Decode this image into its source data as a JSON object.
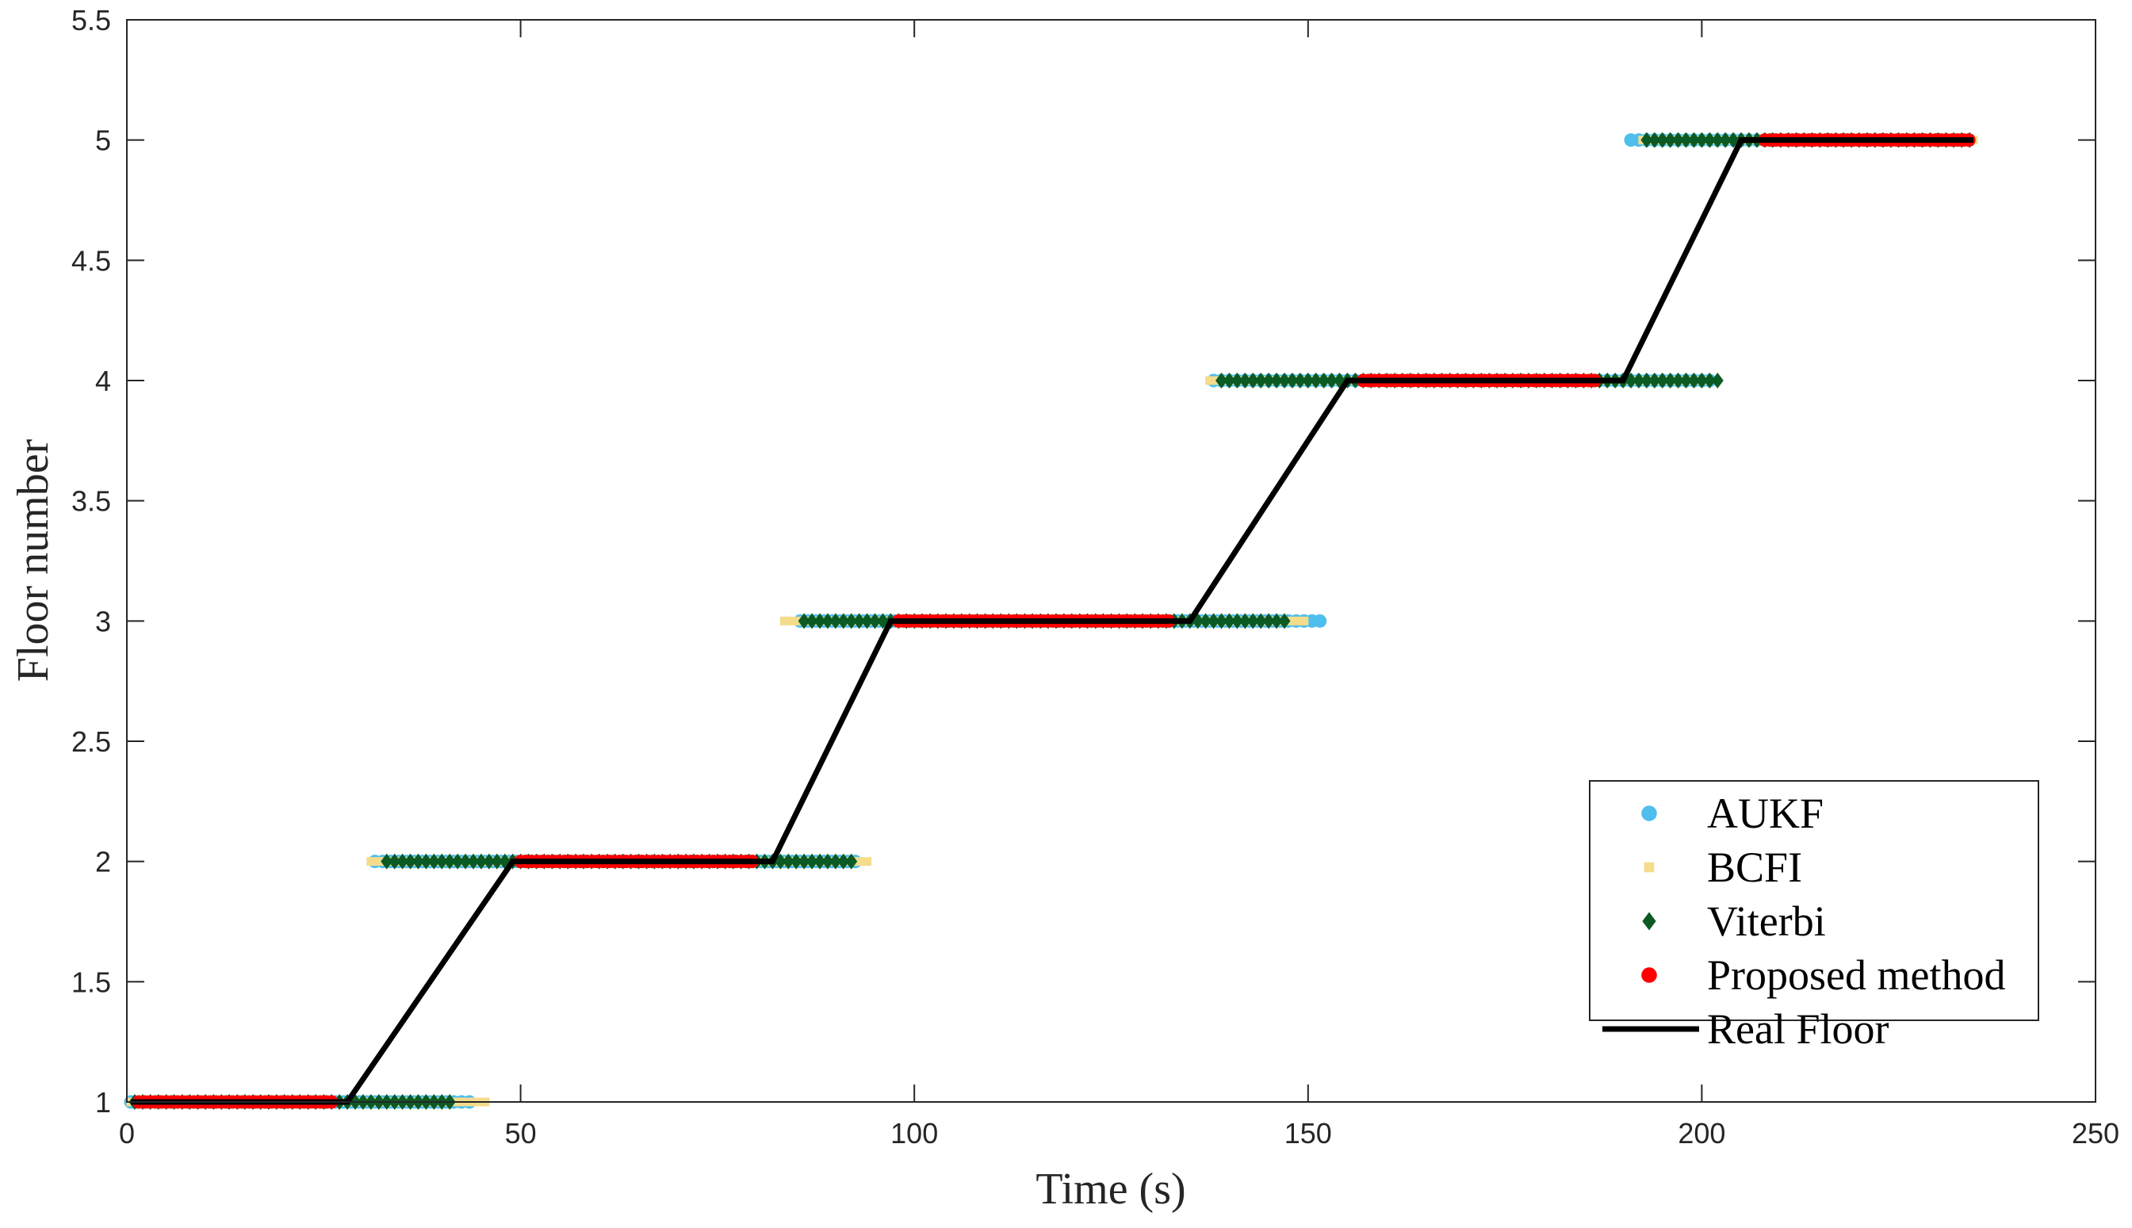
{
  "chart_data": {
    "type": "scatter",
    "xlabel": "Time (s)",
    "ylabel": "Floor number",
    "xlim": [
      0,
      250
    ],
    "ylim": [
      1,
      5.5
    ],
    "xticks": [
      0,
      50,
      100,
      150,
      200,
      250
    ],
    "yticks": [
      1,
      1.5,
      2,
      2.5,
      3,
      3.5,
      4,
      4.5,
      5,
      5.5
    ],
    "grid": false,
    "legend_position": "bottom-right",
    "series": [
      {
        "name": "AUKF",
        "marker": "circle",
        "color": "#4DBEEE",
        "segments": [
          {
            "y": 1,
            "x_start": 0.5,
            "x_end": 43.5,
            "step": 1
          },
          {
            "y": 2,
            "x_start": 31.5,
            "x_end": 93,
            "step": 1
          },
          {
            "y": 3,
            "x_start": 85.5,
            "x_end": 151.5,
            "step": 1
          },
          {
            "y": 4,
            "x_start": 138,
            "x_end": 201.5,
            "step": 1
          },
          {
            "y": 5,
            "x_start": 191,
            "x_end": 234.5,
            "step": 1
          }
        ]
      },
      {
        "name": "BCFI",
        "marker": "square",
        "color": "#F4DC8C",
        "segments": [
          {
            "y": 1,
            "x_start": 0.5,
            "x_end": 45.5,
            "step": 1
          },
          {
            "y": 2,
            "x_start": 31,
            "x_end": 94.5,
            "step": 1
          },
          {
            "y": 3,
            "x_start": 83.5,
            "x_end": 149.5,
            "step": 1
          },
          {
            "y": 4,
            "x_start": 137.5,
            "x_end": 201,
            "step": 1
          },
          {
            "y": 5,
            "x_start": 192.5,
            "x_end": 234.5,
            "step": 1
          }
        ]
      },
      {
        "name": "Viterbi",
        "marker": "diamond",
        "color": "#0B5A24",
        "segments": [
          {
            "y": 1,
            "x_start": 1,
            "x_end": 41.5,
            "step": 1
          },
          {
            "y": 2,
            "x_start": 33,
            "x_end": 92,
            "step": 1
          },
          {
            "y": 3,
            "x_start": 86,
            "x_end": 147,
            "step": 1
          },
          {
            "y": 4,
            "x_start": 139,
            "x_end": 202,
            "step": 1
          },
          {
            "y": 5,
            "x_start": 193,
            "x_end": 234,
            "step": 1
          }
        ]
      },
      {
        "name": "Proposed method",
        "marker": "circle",
        "color": "#FF0000",
        "segments": [
          {
            "y": 1,
            "x_start": 1.5,
            "x_end": 26,
            "step": 0.7
          },
          {
            "y": 2,
            "x_start": 50,
            "x_end": 79.5,
            "step": 0.7
          },
          {
            "y": 3,
            "x_start": 98,
            "x_end": 132.5,
            "step": 0.7
          },
          {
            "y": 4,
            "x_start": 157,
            "x_end": 187,
            "step": 0.7
          },
          {
            "y": 5,
            "x_start": 208,
            "x_end": 234.5,
            "step": 0.7
          }
        ]
      },
      {
        "name": "Real Floor",
        "marker": "line",
        "color": "#000000",
        "x": [
          0.5,
          28,
          49,
          82,
          97,
          135,
          155,
          190,
          205,
          234.5
        ],
        "y": [
          1,
          1,
          2,
          2,
          3,
          3,
          4,
          4,
          5,
          5
        ]
      }
    ]
  }
}
